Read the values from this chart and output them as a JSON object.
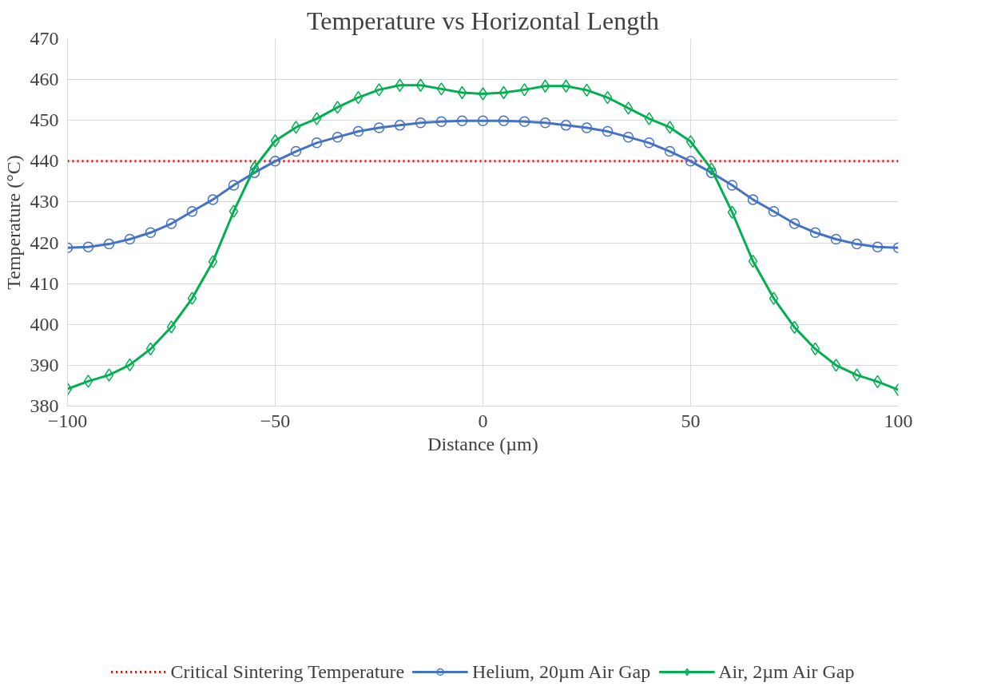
{
  "chart_data": {
    "type": "line",
    "title": "Temperature vs Horizontal Length",
    "xlabel": "Distance (µm)",
    "ylabel": "Temperature (°C)",
    "x": [
      -100,
      -95,
      -90,
      -85,
      -80,
      -75,
      -70,
      -65,
      -60,
      -55,
      -50,
      -45,
      -40,
      -35,
      -30,
      -25,
      -20,
      -15,
      -10,
      -5,
      0,
      5,
      10,
      15,
      20,
      25,
      30,
      35,
      40,
      45,
      50,
      55,
      60,
      65,
      70,
      75,
      80,
      85,
      90,
      95,
      100
    ],
    "series": [
      {
        "name": "Helium, 20µm Air Gap",
        "color": "#4472c4",
        "marker": "circle",
        "values": [
          418.8,
          419.0,
          419.7,
          420.9,
          422.5,
          424.7,
          427.7,
          430.6,
          434.1,
          437.2,
          440.0,
          442.4,
          444.5,
          445.9,
          447.3,
          448.2,
          448.8,
          449.4,
          449.7,
          449.9,
          449.9,
          449.9,
          449.7,
          449.4,
          448.8,
          448.2,
          447.3,
          445.9,
          444.5,
          442.4,
          440.0,
          437.2,
          434.1,
          430.6,
          427.7,
          424.7,
          422.5,
          420.9,
          419.7,
          419.0,
          418.8
        ]
      },
      {
        "name": "Air, 2µm Air Gap",
        "color": "#00b050",
        "marker": "diamond",
        "values": [
          384.2,
          386.1,
          387.6,
          390.1,
          394.0,
          399.4,
          406.4,
          415.4,
          427.7,
          438.4,
          445.0,
          448.3,
          450.4,
          453.2,
          455.6,
          457.5,
          458.6,
          458.6,
          457.7,
          456.8,
          456.5,
          456.8,
          457.5,
          458.4,
          458.4,
          457.4,
          455.6,
          453.0,
          450.4,
          448.3,
          444.8,
          438.1,
          427.5,
          415.5,
          406.4,
          399.3,
          394.0,
          390.0,
          387.6,
          386.0,
          384.0
        ]
      }
    ],
    "ref_lines": [
      {
        "axis": "y",
        "value": 440,
        "label": "Critical Sintering Temperature",
        "color": "#ff0000",
        "line_style": "dotted"
      }
    ],
    "xlim": [
      -100,
      100
    ],
    "xticks": [
      -100,
      -50,
      0,
      50,
      100
    ],
    "ylim": [
      380,
      470
    ],
    "yticks": [
      380,
      390,
      400,
      410,
      420,
      430,
      440,
      450,
      460,
      470
    ],
    "grid": true,
    "legend": "bottom",
    "line_style": "solid"
  }
}
